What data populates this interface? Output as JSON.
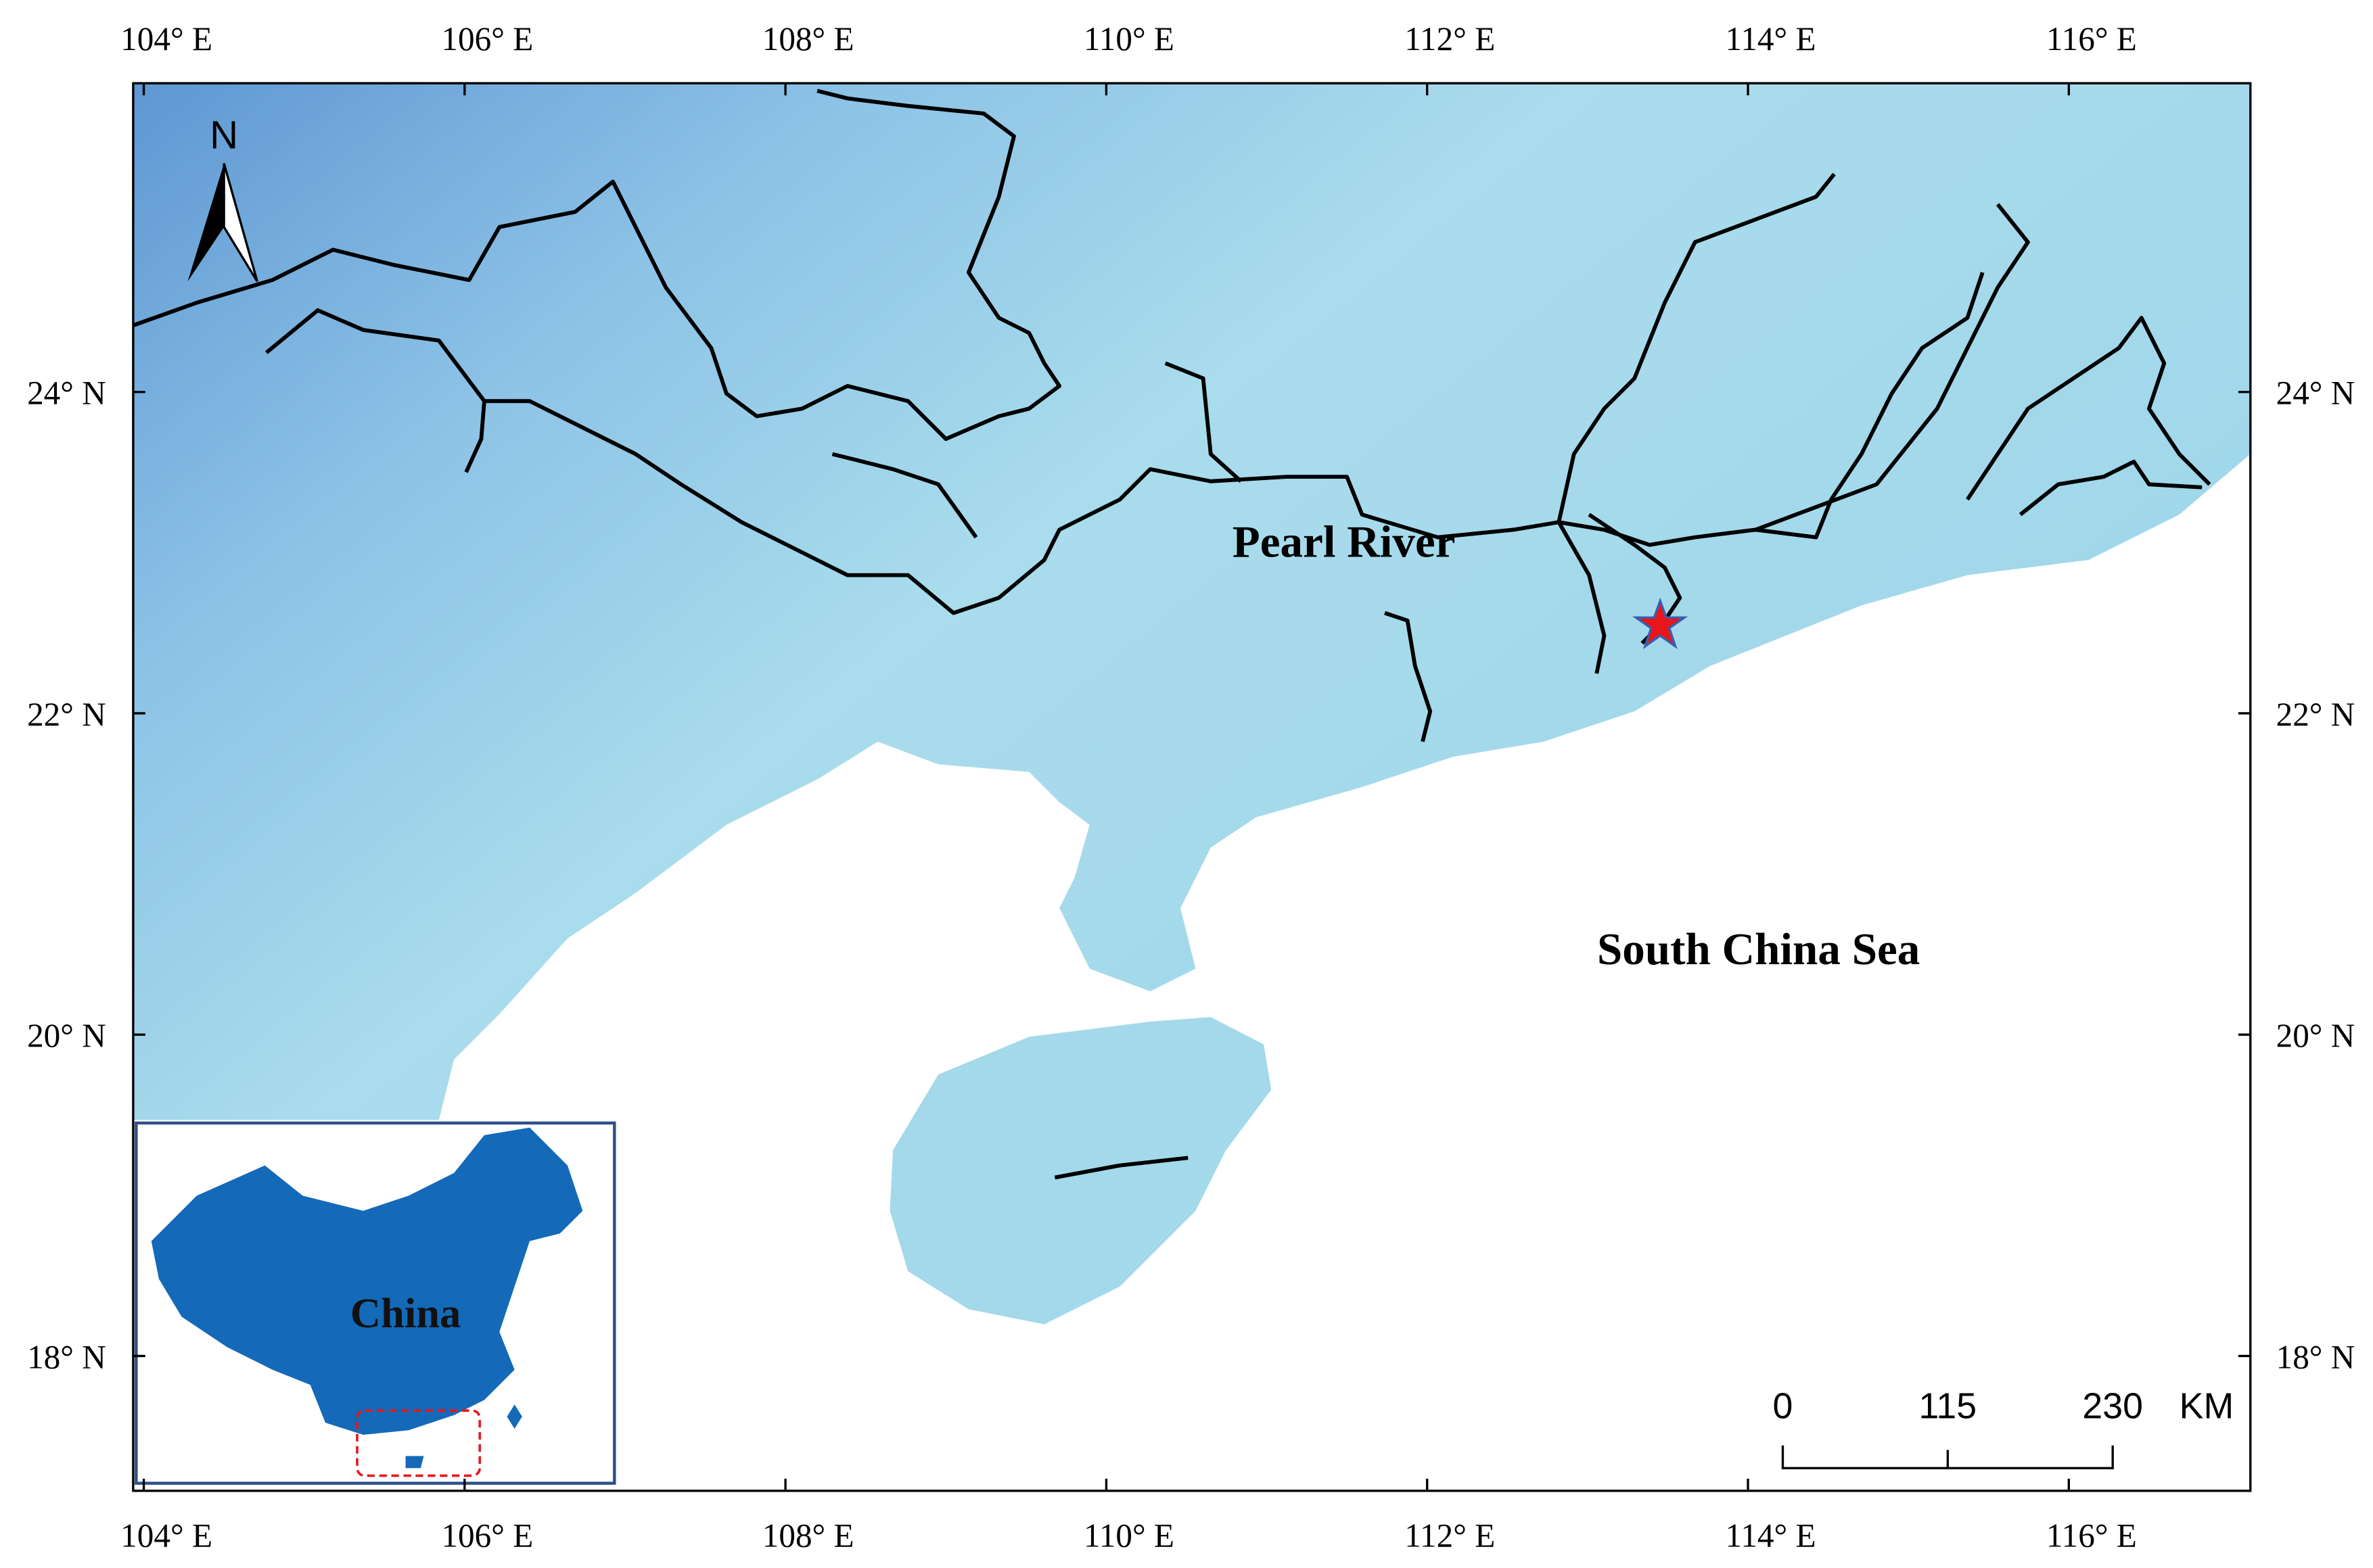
{
  "north": "N",
  "lon_labels": [
    "104° E",
    "106° E",
    "108° E",
    "110° E",
    "112° E",
    "114° E",
    "116° E"
  ],
  "lat_labels": [
    "24° N",
    "22° N",
    "20° N",
    "18° N"
  ],
  "labels": {
    "river": "Pearl River",
    "sea": "South China Sea",
    "inset": "China"
  },
  "scale_bar": {
    "labels": [
      "0",
      "115",
      "230"
    ],
    "unit": "KM"
  }
}
